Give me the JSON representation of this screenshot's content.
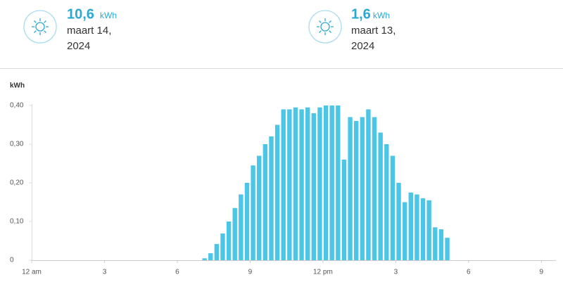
{
  "summary": {
    "items": [
      {
        "value": "10,6",
        "unit": "kWh",
        "date_line1": "maart 14,",
        "date_line2": "2024"
      },
      {
        "value": "1,6",
        "unit": "kWh",
        "date_line1": "maart 13,",
        "date_line2": "2024"
      }
    ]
  },
  "chart_data": {
    "type": "bar",
    "y_label": "kWh",
    "color": "#4cc6e6",
    "grid": false,
    "x": [
      7,
      7.25,
      7.5,
      7.75,
      8,
      8.25,
      8.5,
      8.75,
      9,
      9.25,
      9.5,
      9.75,
      10,
      10.25,
      10.5,
      10.75,
      11,
      11.25,
      11.5,
      11.75,
      12,
      12.25,
      12.5,
      12.75,
      13,
      13.25,
      13.5,
      13.75,
      14,
      14.25,
      14.5,
      14.75,
      15,
      15.25,
      15.5,
      15.75,
      16,
      16.25,
      16.5,
      16.75,
      17
    ],
    "values": [
      0.005,
      0.018,
      0.042,
      0.069,
      0.1,
      0.135,
      0.17,
      0.2,
      0.245,
      0.27,
      0.3,
      0.32,
      0.35,
      0.39,
      0.39,
      0.395,
      0.39,
      0.395,
      0.38,
      0.395,
      0.4,
      0.4,
      0.4,
      0.26,
      0.37,
      0.36,
      0.37,
      0.39,
      0.37,
      0.33,
      0.3,
      0.27,
      0.2,
      0.15,
      0.175,
      0.17,
      0.16,
      0.155,
      0.085,
      0.08,
      0.058
    ],
    "bar_width": 0.25,
    "xlim": [
      0,
      21.6
    ],
    "xticks": [
      {
        "value": 0,
        "label": "12 am"
      },
      3,
      6,
      9,
      {
        "value": 12,
        "label": "12 pm"
      },
      {
        "value": 15,
        "label": "3"
      },
      {
        "value": 18,
        "label": "6"
      },
      {
        "value": 21,
        "label": "9"
      }
    ],
    "ylim": [
      0,
      0.4
    ],
    "yticks": [
      0,
      {
        "value": 0.1,
        "label": "0,10"
      },
      {
        "value": 0.2,
        "label": "0,20"
      },
      {
        "value": 0.3,
        "label": "0,30"
      },
      {
        "value": 0.4,
        "label": "0,40"
      }
    ]
  }
}
